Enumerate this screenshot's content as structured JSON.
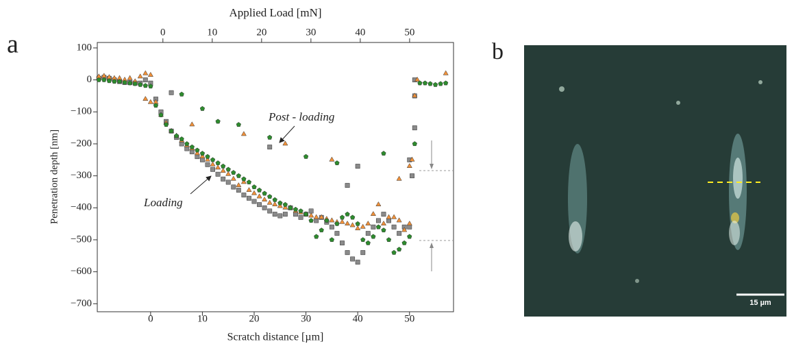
{
  "panel_labels": [
    "a",
    "b"
  ],
  "micrograph": {
    "scale_bar": "15 µm"
  },
  "chart_data": {
    "type": "scatter",
    "xlabel": "Scratch distance [µm]",
    "ylabel": "Penetration depth [nm]",
    "x2label": "Applied Load [mN]",
    "xlim": [
      -10.3,
      58.5
    ],
    "xticks": [
      0,
      10,
      20,
      30,
      40,
      50
    ],
    "x2lim": [
      -13.3,
      58.9
    ],
    "x2ticks": [
      0,
      10,
      20,
      30,
      40,
      50
    ],
    "ylim": [
      -725,
      117
    ],
    "yticks": [
      {
        "value": -700,
        "label": "−700"
      },
      {
        "value": -600,
        "label": "−600"
      },
      {
        "value": -500,
        "label": "−500"
      },
      {
        "value": -400,
        "label": "−400"
      },
      {
        "value": -300,
        "label": "−300"
      },
      {
        "value": -200,
        "label": "−200"
      },
      {
        "value": -100,
        "label": "−100"
      },
      0,
      100
    ],
    "annotations": [
      "Post - loading",
      "Loading"
    ],
    "series": [
      {
        "marker": "square",
        "color": "#8a8a8a",
        "x": [
          -10,
          -9,
          -8,
          -7,
          -6,
          -5,
          -4,
          -3,
          -2,
          -1,
          0,
          1,
          2,
          3,
          4,
          5,
          6,
          7,
          8,
          9,
          10,
          11,
          12,
          13,
          14,
          15,
          16,
          17,
          18,
          19,
          20,
          21,
          22,
          23,
          24,
          25,
          26,
          27,
          28,
          29,
          30,
          31,
          32,
          33,
          34,
          35,
          36,
          37,
          38,
          39,
          40,
          41,
          42,
          43,
          44,
          45,
          46,
          47,
          48,
          49,
          50,
          50.5,
          51,
          51,
          51,
          4,
          23,
          38,
          40,
          50
        ],
        "values": [
          5,
          8,
          5,
          0,
          -5,
          -8,
          -8,
          -10,
          -10,
          0,
          -10,
          -60,
          -100,
          -130,
          -160,
          -180,
          -200,
          -215,
          -225,
          -240,
          -250,
          -265,
          -280,
          -295,
          -310,
          -320,
          -335,
          -345,
          -360,
          -370,
          -380,
          -390,
          -400,
          -410,
          -420,
          -425,
          -420,
          -400,
          -420,
          -430,
          -420,
          -410,
          -440,
          -430,
          -445,
          -460,
          -480,
          -510,
          -540,
          -560,
          -570,
          -540,
          -480,
          -460,
          -440,
          -420,
          -440,
          -460,
          -480,
          -460,
          -460,
          -300,
          -150,
          -50,
          0,
          -40,
          -210,
          -330,
          -270,
          -250
        ]
      },
      {
        "marker": "triangle",
        "color": "#f0913a",
        "x": [
          -10,
          -9,
          -8,
          -7,
          -6,
          -5,
          -4,
          -3,
          -2,
          -1,
          0,
          1,
          2,
          3,
          4,
          5,
          6,
          7,
          8,
          9,
          10,
          11,
          12,
          13,
          14,
          15,
          16,
          17,
          18,
          19,
          20,
          21,
          22,
          23,
          24,
          25,
          26,
          27,
          28,
          29,
          30,
          31,
          32,
          33,
          34,
          35,
          36,
          37,
          38,
          39,
          40,
          41,
          42,
          43,
          44,
          45,
          46,
          47,
          48,
          49,
          50,
          50.5,
          51,
          51.5,
          57,
          -1,
          0,
          8,
          18,
          26,
          35,
          48,
          50
        ],
        "values": [
          10,
          12,
          8,
          5,
          5,
          0,
          5,
          -5,
          10,
          20,
          15,
          -70,
          -110,
          -135,
          -160,
          -175,
          -190,
          -205,
          -215,
          -230,
          -240,
          -250,
          -265,
          -275,
          -285,
          -295,
          -310,
          -330,
          -320,
          -345,
          -355,
          -365,
          -375,
          -385,
          -390,
          -395,
          -400,
          -400,
          -410,
          -415,
          -420,
          -425,
          -430,
          -430,
          -435,
          -440,
          -445,
          -445,
          -450,
          -455,
          -465,
          -460,
          -450,
          -420,
          -390,
          -450,
          -430,
          -430,
          -440,
          -470,
          -450,
          -250,
          -50,
          0,
          20,
          -60,
          -70,
          -140,
          -170,
          -200,
          -250,
          -310,
          -270
        ]
      },
      {
        "marker": "pentagon",
        "color": "#2e8b2e",
        "x": [
          -10,
          -9,
          -8,
          -7,
          -6,
          -5,
          -4,
          -3,
          -2,
          -1,
          0,
          1,
          2,
          3,
          4,
          5,
          6,
          7,
          8,
          9,
          10,
          11,
          12,
          13,
          14,
          15,
          16,
          17,
          18,
          19,
          20,
          21,
          22,
          23,
          24,
          25,
          26,
          27,
          28,
          29,
          30,
          31,
          32,
          33,
          34,
          35,
          36,
          37,
          38,
          39,
          40,
          41,
          42,
          43,
          44,
          45,
          46,
          47,
          48,
          49,
          50,
          51,
          52,
          53,
          54,
          55,
          56,
          57,
          6,
          10,
          13,
          17,
          23,
          30,
          36,
          45
        ],
        "values": [
          0,
          0,
          -3,
          -5,
          -5,
          -8,
          -10,
          -12,
          -15,
          -18,
          -20,
          -80,
          -110,
          -140,
          -160,
          -175,
          -185,
          -200,
          -210,
          -220,
          -230,
          -240,
          -250,
          -260,
          -270,
          -280,
          -290,
          -300,
          -310,
          -320,
          -335,
          -345,
          -355,
          -365,
          -375,
          -385,
          -390,
          -400,
          -405,
          -410,
          -420,
          -440,
          -490,
          -470,
          -440,
          -500,
          -450,
          -430,
          -420,
          -430,
          -450,
          -500,
          -510,
          -490,
          -460,
          -470,
          -500,
          -540,
          -530,
          -510,
          -490,
          -200,
          -10,
          -10,
          -12,
          -15,
          -12,
          -10,
          -45,
          -90,
          -130,
          -140,
          -180,
          -240,
          -260,
          -230
        ]
      }
    ]
  }
}
